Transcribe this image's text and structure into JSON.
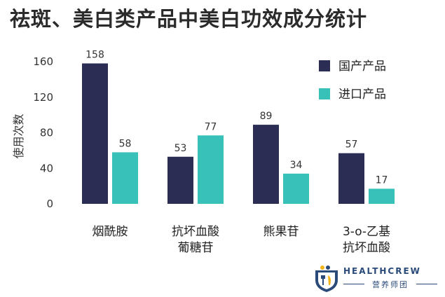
{
  "chart_data": {
    "type": "bar",
    "title": "祛斑、美白类产品中美白功效成分统计",
    "ylabel": "使用次数",
    "xlabel": "",
    "ylim": [
      0,
      160
    ],
    "yticks": [
      0,
      40,
      80,
      120,
      160
    ],
    "grid": false,
    "legend_position": "top-right",
    "categories": [
      [
        "烟酰胺"
      ],
      [
        "抗坏血酸",
        "葡糖苷"
      ],
      [
        "熊果苷"
      ],
      [
        "3-o-乙基",
        "抗坏血酸"
      ]
    ],
    "series": [
      {
        "name": "国产产品",
        "color": "#2b2d55",
        "values": [
          158,
          53,
          89,
          57
        ]
      },
      {
        "name": "进口产品",
        "color": "#37c1b8",
        "values": [
          58,
          77,
          34,
          17
        ]
      }
    ]
  },
  "brand": {
    "name_en": "HEALTHCREW",
    "name_cn": "营养师团"
  }
}
